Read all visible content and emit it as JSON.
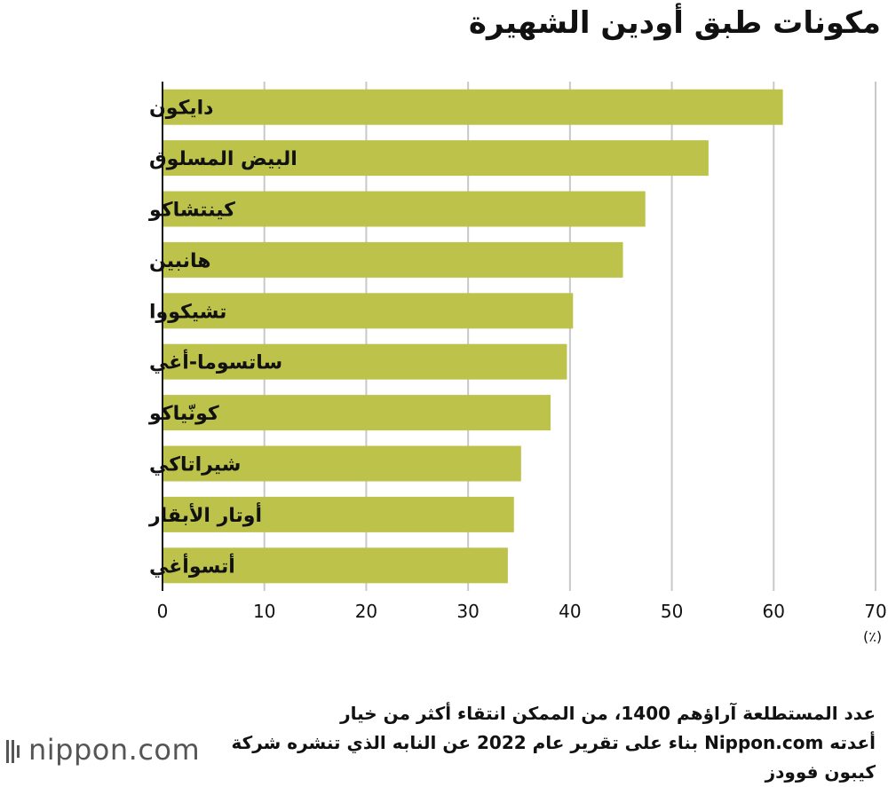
{
  "chart_data": {
    "type": "bar",
    "orientation": "horizontal",
    "title": "مكونات طبق أودين الشهيرة",
    "categories": [
      "دايكون",
      "البيض المسلوق",
      "كينتشاكو",
      "هانبين",
      "تشيكووا",
      "ساتسوما-أغي",
      "كونّياكو",
      "شيراتاكي",
      "أوتار الأبقار",
      "أتسوأغي"
    ],
    "values": [
      60.9,
      53.6,
      47.4,
      45.2,
      40.3,
      39.7,
      38.1,
      35.2,
      34.5,
      33.9
    ],
    "xlim": [
      0,
      70
    ],
    "xticks": [
      "0",
      "10",
      "20",
      "30",
      "40",
      "50",
      "60",
      "70"
    ],
    "unit_label": "(٪)",
    "bar_color": "#bcc24a",
    "grid": true
  },
  "note": {
    "lines": [
      "عدد المستطلعة آراؤهم 1400، من الممكن انتقاء أكثر من خيار",
      "أعدته Nippon.com بناء على تقرير عام 2022 عن النابه الذي تنشره شركة",
      "كيبون فوودز"
    ]
  },
  "brand": {
    "name": "nippon",
    "suffix": ".com"
  }
}
